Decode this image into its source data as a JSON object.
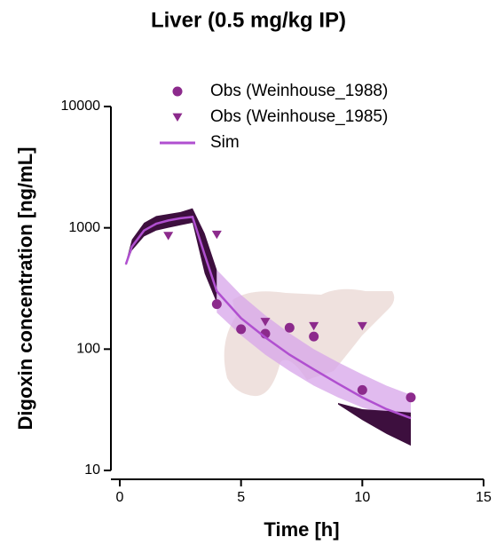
{
  "chart_data": {
    "type": "line",
    "title": "Liver (0.5 mg/kg IP)",
    "xlabel": "Time [h]",
    "ylabel": "Digoxin concentration [ng/mL]",
    "xlim": [
      0,
      15
    ],
    "xticks": [
      0,
      5,
      10,
      15
    ],
    "ylim": [
      10,
      10000
    ],
    "yticks": [
      10,
      100,
      1000,
      10000
    ],
    "yscale": "log",
    "legend": "upper right",
    "series": [
      {
        "name": "Obs (Weinhouse_1988)",
        "marker": "circle",
        "color": "#8c2a8c",
        "x": [
          4,
          5,
          6,
          7,
          8,
          10,
          12
        ],
        "values": [
          235,
          146,
          134,
          150,
          127,
          46,
          40
        ]
      },
      {
        "name": "Obs (Weinhouse_1985)",
        "marker": "triangle",
        "color": "#8c2a8c",
        "x": [
          2,
          4,
          6,
          8,
          10
        ],
        "values": [
          860,
          880,
          168,
          155,
          155
        ]
      },
      {
        "name": "Sim",
        "marker": "line",
        "color": "#b04fd0",
        "x": [
          0.25,
          0.5,
          1,
          1.5,
          2,
          2.5,
          3,
          3.5,
          4,
          5,
          6,
          7,
          8,
          9,
          10,
          11,
          12
        ],
        "values": [
          500,
          700,
          950,
          1080,
          1150,
          1200,
          1230,
          600,
          300,
          180,
          125,
          90,
          68,
          52,
          40,
          32,
          27
        ]
      }
    ],
    "bands": [
      {
        "color": "#3d0f3e",
        "x": [
          0.25,
          0.5,
          1,
          1.5,
          2,
          2.5,
          3,
          3.5,
          4
        ],
        "lower": [
          490,
          650,
          850,
          950,
          1000,
          1050,
          1100,
          420,
          240
        ],
        "upper": [
          520,
          800,
          1100,
          1250,
          1300,
          1350,
          1450,
          900,
          450
        ]
      },
      {
        "color": "#d7a4ea",
        "x": [
          4,
          5,
          6,
          7,
          8,
          9,
          10,
          11,
          12
        ],
        "lower": [
          200,
          130,
          90,
          66,
          50,
          40,
          33,
          29,
          27
        ],
        "upper": [
          450,
          280,
          190,
          135,
          100,
          78,
          62,
          50,
          42
        ]
      },
      {
        "color": "#3d0f3e",
        "x": [
          9,
          10,
          11,
          12
        ],
        "lower": [
          35,
          26,
          20,
          16
        ],
        "upper": [
          36,
          32,
          31,
          30
        ]
      }
    ]
  }
}
